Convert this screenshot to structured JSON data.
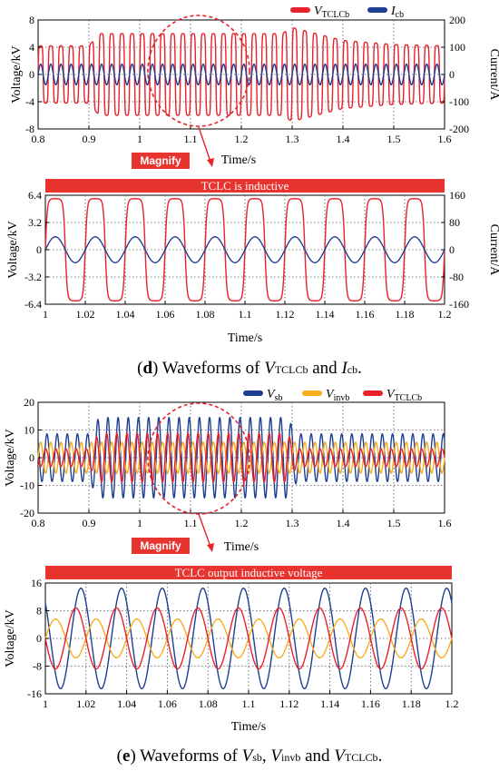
{
  "colors": {
    "red": "#e8212b",
    "blue": "#1f3f93",
    "yellow": "#f6ae1c",
    "banner": "#e8342f",
    "grid": "#555555"
  },
  "panel_d": {
    "magnify_label": "Magnify",
    "caption": {
      "prefix": "(",
      "letter": "d",
      "mid": ") Waveforms of ",
      "v_main": "V",
      "v_sub": "TCLCb",
      "and": " and ",
      "i_main": "I",
      "i_sub": "cb",
      "end": "."
    }
  },
  "panel_e": {
    "magnify_label": "Magnify",
    "caption": {
      "prefix": "(",
      "letter": "e",
      "mid": ") Waveforms of ",
      "v1_main": "V",
      "v1_sub": "sb",
      "comma": ", ",
      "v2_main": "V",
      "v2_sub": "invb",
      "and": " and ",
      "v3_main": "V",
      "v3_sub": "TCLCb",
      "end": "."
    }
  },
  "chart_data": [
    {
      "id": "d-top",
      "type": "line",
      "xlabel": "Time/s",
      "ylabel": "Voltage/kV",
      "y2label": "Current/A",
      "xlim": [
        0.8,
        1.6
      ],
      "ylim": [
        -8,
        8
      ],
      "y2lim": [
        -200,
        200
      ],
      "xticks": [
        "0.8",
        "0.9",
        "1",
        "1.1",
        "1.2",
        "1.3",
        "1.4",
        "1.5",
        "1.6"
      ],
      "yticks": [
        "-8",
        "-4",
        "0",
        "4",
        "8"
      ],
      "y2ticks": [
        "-200",
        "-100",
        "0",
        "100",
        "200"
      ],
      "series": [
        {
          "name_main": "V",
          "name_sub": "TCLCb",
          "axis": "left",
          "color": "red",
          "frequency_hz": 50,
          "amplitude": [
            [
              0.8,
              4.2
            ],
            [
              0.9,
              4.2
            ],
            [
              0.92,
              6.0
            ],
            [
              1.28,
              6.0
            ],
            [
              1.3,
              6.9
            ],
            [
              1.4,
              5.0
            ],
            [
              1.5,
              4.4
            ],
            [
              1.6,
              4.2
            ]
          ]
        },
        {
          "name_main": "I",
          "name_sub": "cb",
          "axis": "right",
          "color": "blue",
          "frequency_hz": 50,
          "amplitude": [
            [
              0.8,
              38
            ],
            [
              1.6,
              38
            ]
          ]
        }
      ],
      "annotation": {
        "type": "ellipse",
        "x_range": [
          1.0,
          1.2
        ],
        "label": "Magnify"
      }
    },
    {
      "id": "d-zoom",
      "type": "line",
      "title": "TCLC is inductive",
      "xlabel": "Time/s",
      "ylabel": "Voltage/kV",
      "y2label": "Current/A",
      "xlim": [
        1.0,
        1.2
      ],
      "ylim": [
        -6.4,
        6.4
      ],
      "y2lim": [
        -160,
        160
      ],
      "xticks": [
        "1",
        "1.02",
        "1.04",
        "1.06",
        "1.08",
        "1.1",
        "1.12",
        "1.14",
        "1.16",
        "1.18",
        "1.2"
      ],
      "yticks": [
        "-6.4",
        "-3.2",
        "0",
        "3.2",
        "6.4"
      ],
      "y2ticks": [
        "-160",
        "-80",
        "0",
        "80",
        "160"
      ],
      "series": [
        {
          "name": "VTCLCb",
          "axis": "left",
          "color": "red",
          "frequency_hz": 50,
          "amplitude": [
            [
              1.0,
              6.0
            ],
            [
              1.2,
              6.0
            ]
          ]
        },
        {
          "name": "Icb",
          "axis": "right",
          "color": "blue",
          "frequency_hz": 50,
          "amplitude": [
            [
              1.0,
              38
            ],
            [
              1.2,
              38
            ]
          ]
        }
      ]
    },
    {
      "id": "e-top",
      "type": "line",
      "xlabel": "Time/s",
      "ylabel": "Voltage/kV",
      "xlim": [
        0.8,
        1.6
      ],
      "ylim": [
        -20,
        20
      ],
      "xticks": [
        "0.8",
        "0.9",
        "1",
        "1.1",
        "1.2",
        "1.3",
        "1.4",
        "1.5",
        "1.6"
      ],
      "yticks": [
        "-20",
        "-10",
        "0",
        "10",
        "20"
      ],
      "series": [
        {
          "name_main": "V",
          "name_sub": "sb",
          "color": "blue",
          "frequency_hz": 50,
          "amplitude": [
            [
              0.8,
              8.6
            ],
            [
              0.9,
              8.6
            ],
            [
              0.92,
              14.5
            ],
            [
              1.29,
              14.5
            ],
            [
              1.31,
              8.6
            ],
            [
              1.6,
              8.6
            ]
          ]
        },
        {
          "name_main": "V",
          "name_sub": "invb",
          "color": "yellow",
          "frequency_hz": 50,
          "amplitude": [
            [
              0.8,
              5.6
            ],
            [
              1.6,
              5.6
            ]
          ]
        },
        {
          "name_main": "V",
          "name_sub": "TCLCb",
          "color": "red",
          "frequency_hz": 50,
          "amplitude": [
            [
              0.8,
              3.2
            ],
            [
              0.9,
              3.2
            ],
            [
              0.92,
              8.8
            ],
            [
              1.29,
              8.8
            ],
            [
              1.31,
              3.2
            ],
            [
              1.6,
              3.2
            ]
          ]
        }
      ],
      "annotation": {
        "type": "ellipse",
        "x_range": [
          1.0,
          1.2
        ],
        "label": "Magnify"
      }
    },
    {
      "id": "e-zoom",
      "type": "line",
      "title": "TCLC output inductive voltage",
      "xlabel": "Time/s",
      "ylabel": "Voltage/kV",
      "xlim": [
        1.0,
        1.2
      ],
      "ylim": [
        -16,
        16
      ],
      "xticks": [
        "1",
        "1.02",
        "1.04",
        "1.06",
        "1.08",
        "1.1",
        "1.12",
        "1.14",
        "1.16",
        "1.18",
        "1.2"
      ],
      "yticks": [
        "-16",
        "-8",
        "0",
        "8",
        "16"
      ],
      "series": [
        {
          "name": "Vsb",
          "color": "blue",
          "frequency_hz": 50,
          "amplitude": [
            [
              1.0,
              14.5
            ],
            [
              1.2,
              14.5
            ]
          ]
        },
        {
          "name": "Vinvb",
          "color": "yellow",
          "frequency_hz": 50,
          "amplitude": [
            [
              1.0,
              5.6
            ],
            [
              1.2,
              5.6
            ]
          ]
        },
        {
          "name": "VTCLCb",
          "color": "red",
          "frequency_hz": 50,
          "amplitude": [
            [
              1.0,
              8.8
            ],
            [
              1.2,
              8.8
            ]
          ]
        }
      ]
    }
  ]
}
